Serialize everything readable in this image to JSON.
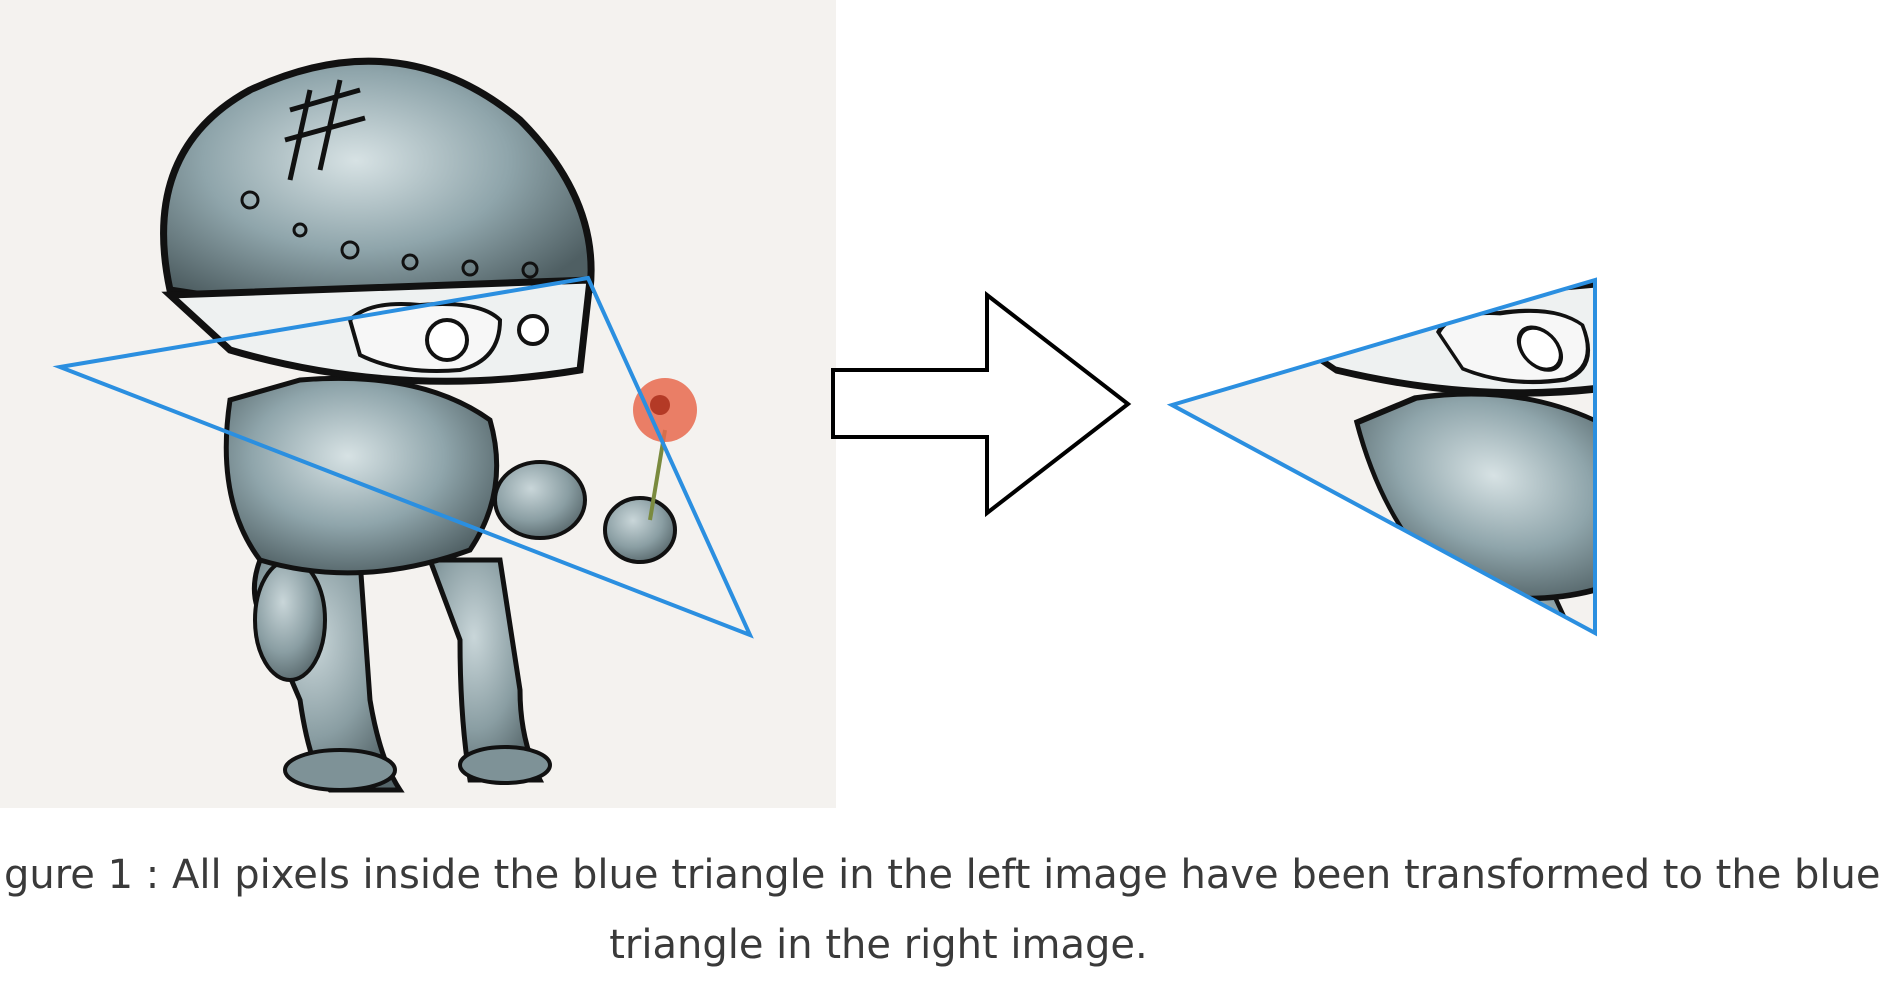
{
  "caption": {
    "line1": "gure 1 : All pixels inside the blue triangle in the left image have been transformed to the blue",
    "line2": "triangle in the right image."
  },
  "colors": {
    "triangle": "#2b8fe0",
    "panel_background": "#f4f2ef",
    "robot_body": "#8fa5ab",
    "robot_outline": "#111111",
    "flower": "#e86a4d",
    "arrow_stroke": "#000000"
  },
  "icons": {
    "arrow": "right-arrow-outline"
  }
}
